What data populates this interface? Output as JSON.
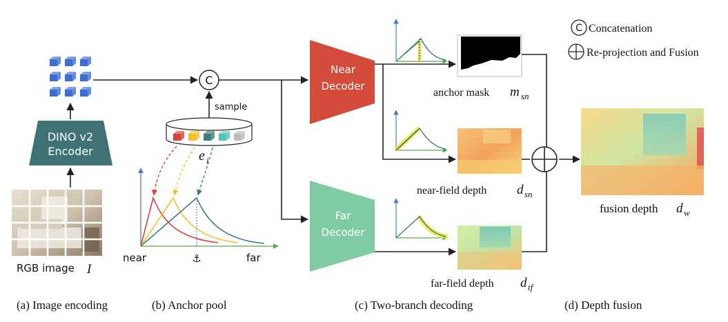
{
  "encoder": {
    "title_line1": "DINO v2",
    "title_line2": "Encoder",
    "input_label": "RGB image",
    "input_symbol": "I"
  },
  "concat_symbol": "C",
  "sample_label": "sample",
  "anchor_pool": {
    "embedding_label": "e",
    "embedding_subscript": "i",
    "axis_near": "near",
    "axis_far": "far",
    "anchor_glyph": "⚓",
    "colors": [
      "#d9423a",
      "#f2c029",
      "#3f7d7f",
      "#58c3bd",
      "#bdbdbd"
    ]
  },
  "near_decoder": {
    "line1": "Near",
    "line2": "Decoder"
  },
  "far_decoder": {
    "line1": "Far",
    "line2": "Decoder"
  },
  "outputs": {
    "anchor_mask": {
      "label": "anchor mask ",
      "symbol": "m",
      "subscript": "sn"
    },
    "near_depth": {
      "label": "near-field depth ",
      "symbol": "d",
      "subscript": "sn"
    },
    "far_depth": {
      "label": "far-field depth ",
      "symbol": "d",
      "subscript": "tf"
    },
    "fusion_depth": {
      "label": "fusion depth ",
      "symbol": "d",
      "subscript": "w"
    }
  },
  "legend": {
    "concat_label": "Concatenation",
    "fusion_label": "Re-projection and Fusion"
  },
  "captions": {
    "a": "(a) Image encoding",
    "b": "(b) Anchor pool",
    "c": "(c) Two-branch decoding",
    "d": "(d) Depth fusion"
  },
  "colors": {
    "encoder": "#3e7275",
    "near_decoder": "#d44b3c",
    "far_decoder": "#7fcba4",
    "cube_blue": "#3d6fd1",
    "arrow": "#222222"
  }
}
